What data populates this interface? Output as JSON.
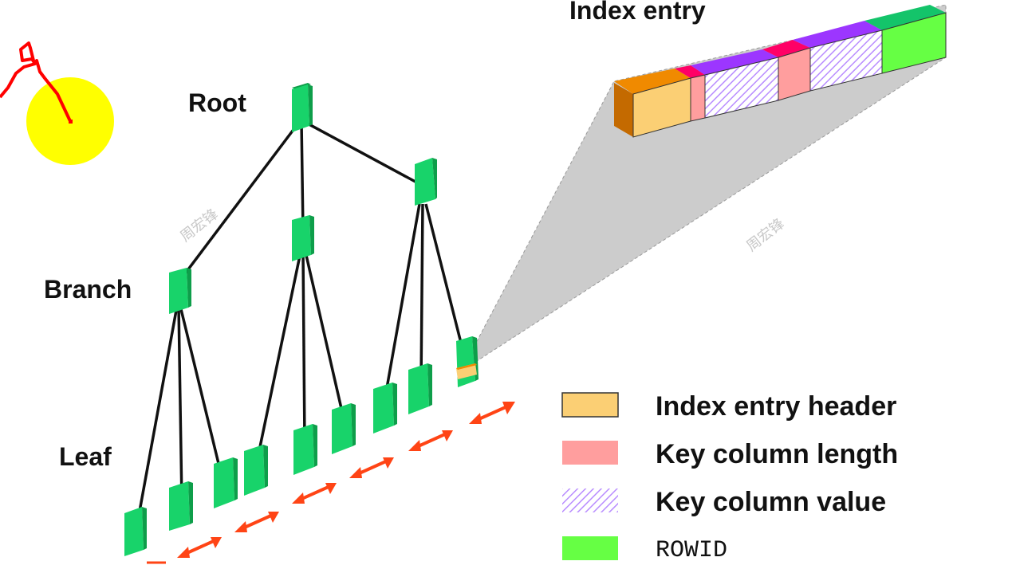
{
  "labels": {
    "root": "Root",
    "branch": "Branch",
    "leaf": "Leaf",
    "index_entry": "Index entry"
  },
  "legend": [
    {
      "label": "Index entry header",
      "color": "#fbcf74",
      "pattern": "solid"
    },
    {
      "label": "Key column length",
      "color": "#ff9e9e",
      "pattern": "solid"
    },
    {
      "label": "Key column value",
      "color": "#b88cff",
      "pattern": "hatch"
    },
    {
      "label": "ROWID",
      "color": "#66ff44",
      "pattern": "solid"
    }
  ],
  "watermark": "周宏锋",
  "colors": {
    "node": "#18d36a",
    "node_dark": "#0e9e4a",
    "arrow": "#ff4415",
    "pointer_disc": "#ffff00",
    "pointer_stroke": "#ff0000",
    "header_face": "#fbcf74",
    "header_top": "#f08a00",
    "header_side": "#c46a00",
    "keylen_face": "#ff9e9e",
    "keylen_top": "#ff0066",
    "keyval_top": "#9c36ff",
    "rowid_face": "#66ff44",
    "rowid_top": "#14c46a",
    "projection": "#cccccc"
  },
  "icons": [
    "pointer-cursor-icon"
  ]
}
